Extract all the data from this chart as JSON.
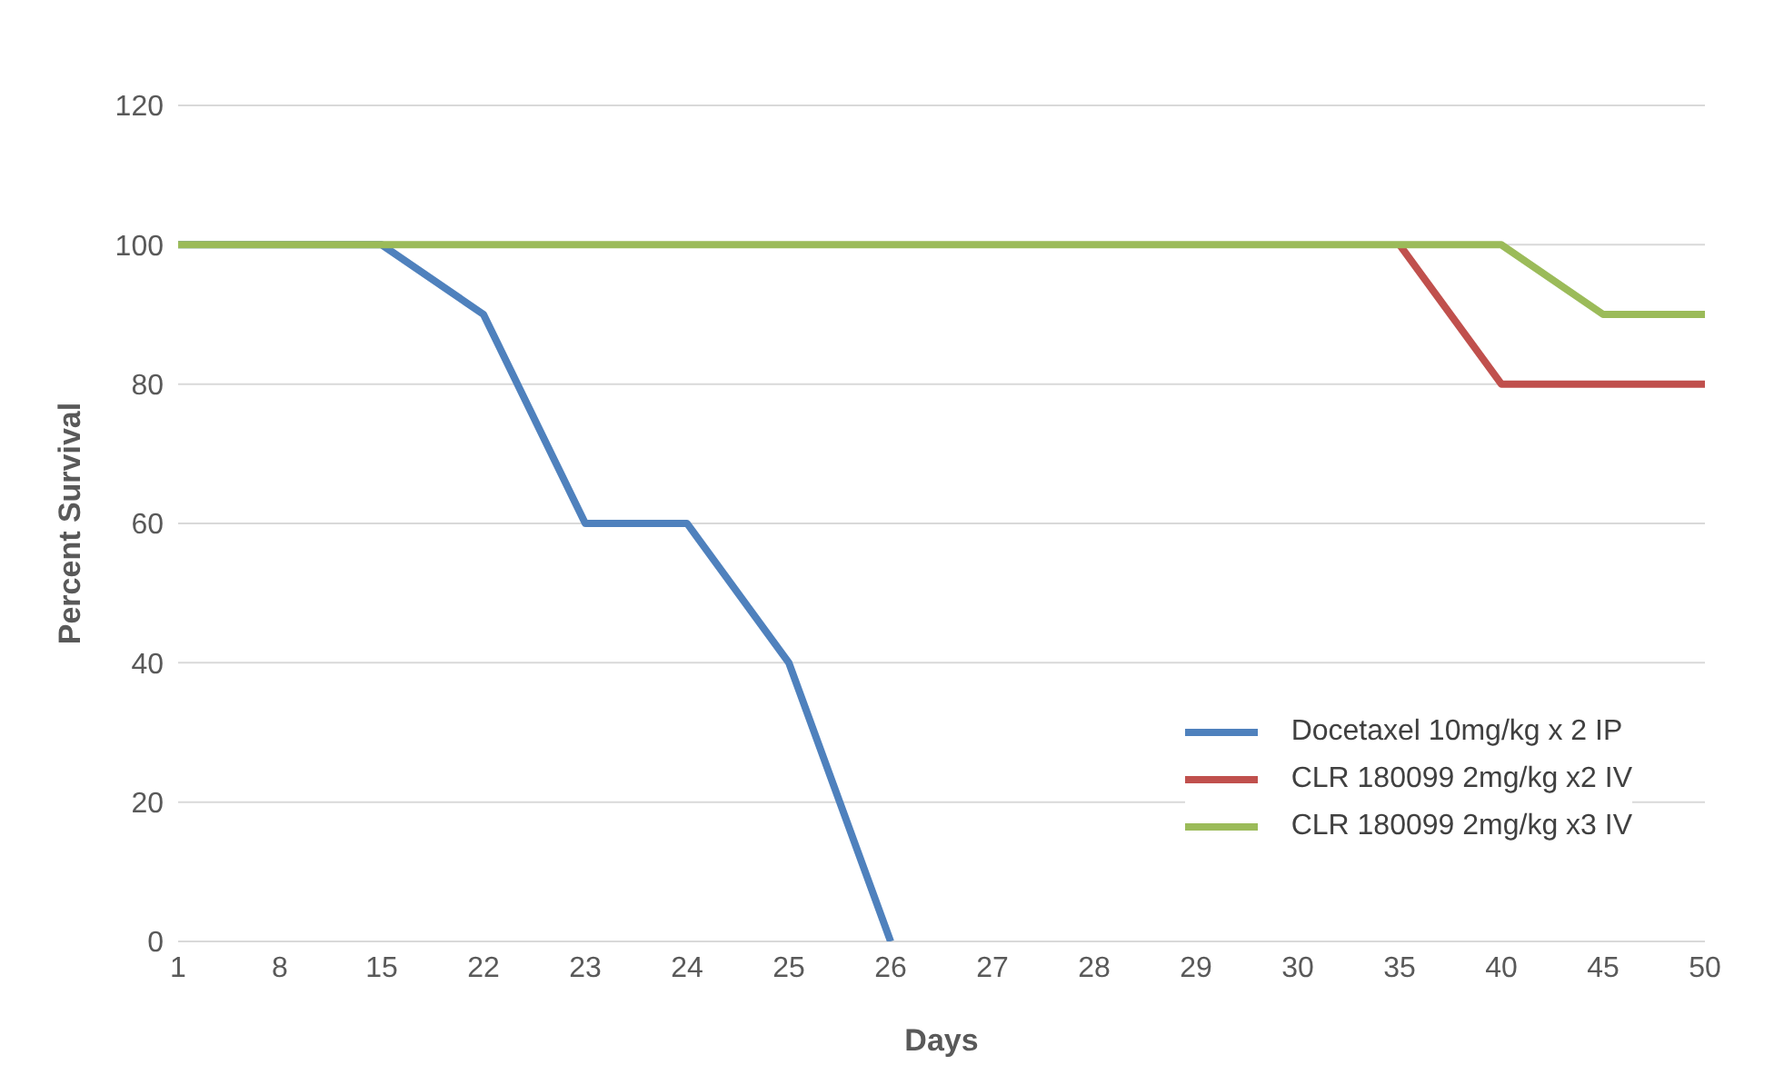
{
  "chart_data": {
    "type": "line",
    "xlabel": "Days",
    "ylabel": "Percent Survival",
    "categories": [
      "1",
      "8",
      "15",
      "22",
      "23",
      "24",
      "25",
      "26",
      "27",
      "28",
      "29",
      "30",
      "35",
      "40",
      "45",
      "50"
    ],
    "series": [
      {
        "name": "Docetaxel 10mg/kg x 2 IP",
        "color": "#4f81bd",
        "values": [
          100,
          100,
          100,
          90,
          60,
          60,
          40,
          0,
          null,
          null,
          null,
          null,
          null,
          null,
          null,
          null
        ]
      },
      {
        "name": "CLR 180099 2mg/kg x2 IV",
        "color": "#c0504d",
        "values": [
          null,
          null,
          null,
          null,
          null,
          null,
          null,
          null,
          null,
          null,
          null,
          null,
          100,
          80,
          80,
          80
        ]
      },
      {
        "name": "CLR 180099 2mg/kg x3 IV",
        "color": "#9bbb59",
        "values": [
          100,
          100,
          100,
          100,
          100,
          100,
          100,
          100,
          100,
          100,
          100,
          100,
          100,
          100,
          90,
          90
        ]
      }
    ],
    "ylim": [
      0,
      120
    ],
    "yticks": [
      0,
      20,
      40,
      60,
      80,
      100,
      120
    ],
    "grid": "y",
    "legend": "bottom right",
    "marker": "none",
    "line_style": "solid"
  }
}
